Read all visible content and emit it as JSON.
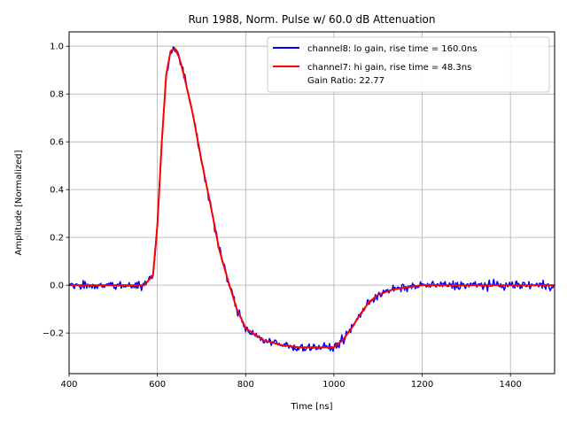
{
  "chart_data": {
    "type": "line",
    "title": "Run 1988, Norm. Pulse w/ 60.0 dB Attenuation",
    "xlabel": "Time [ns]",
    "ylabel": "Amplitude [Normalized]",
    "xlim": [
      400,
      1500
    ],
    "ylim": [
      -0.37,
      1.06
    ],
    "xticks": [
      400,
      600,
      800,
      1000,
      1200,
      1400
    ],
    "yticks": [
      -0.2,
      0.0,
      0.2,
      0.4,
      0.6,
      0.8,
      1.0
    ],
    "xtick_labels": [
      "400",
      "600",
      "800",
      "1000",
      "1200",
      "1400"
    ],
    "ytick_labels": [
      "−0.2",
      "0.0",
      "0.2",
      "0.4",
      "0.6",
      "0.8",
      "1.0"
    ],
    "grid": true,
    "legend_position": "top-right",
    "series": [
      {
        "name": "channel8: lo gain, rise time = 160.0ns",
        "color": "#0000ff",
        "noise_amplitude": 0.018,
        "x": [
          400,
          500,
          570,
          590,
          600,
          610,
          620,
          630,
          640,
          650,
          660,
          680,
          700,
          720,
          740,
          760,
          780,
          800,
          840,
          880,
          920,
          960,
          1000,
          1020,
          1040,
          1060,
          1080,
          1100,
          1130,
          1160,
          1200,
          1300,
          1400,
          1500
        ],
        "y": [
          0.0,
          0.0,
          0.0,
          0.04,
          0.25,
          0.6,
          0.88,
          0.98,
          0.99,
          0.95,
          0.88,
          0.72,
          0.52,
          0.34,
          0.15,
          0.02,
          -0.1,
          -0.18,
          -0.23,
          -0.25,
          -0.26,
          -0.26,
          -0.26,
          -0.23,
          -0.18,
          -0.12,
          -0.07,
          -0.04,
          -0.02,
          -0.01,
          0.0,
          0.0,
          0.0,
          0.0
        ]
      },
      {
        "name": "channel7: hi gain, rise time = 48.3ns\nGain Ratio: 22.77",
        "color": "#ff0000",
        "noise_amplitude": 0.0,
        "x": [
          400,
          500,
          570,
          590,
          600,
          610,
          620,
          630,
          640,
          650,
          660,
          680,
          700,
          720,
          740,
          760,
          780,
          800,
          840,
          880,
          920,
          960,
          1000,
          1020,
          1040,
          1060,
          1080,
          1100,
          1130,
          1160,
          1200,
          1300,
          1400,
          1500
        ],
        "y": [
          0.0,
          0.0,
          0.0,
          0.04,
          0.25,
          0.6,
          0.88,
          0.98,
          0.99,
          0.95,
          0.88,
          0.72,
          0.52,
          0.34,
          0.15,
          0.02,
          -0.1,
          -0.18,
          -0.23,
          -0.25,
          -0.26,
          -0.26,
          -0.26,
          -0.23,
          -0.18,
          -0.12,
          -0.07,
          -0.04,
          -0.02,
          -0.01,
          0.0,
          0.0,
          0.0,
          0.0
        ]
      }
    ]
  }
}
